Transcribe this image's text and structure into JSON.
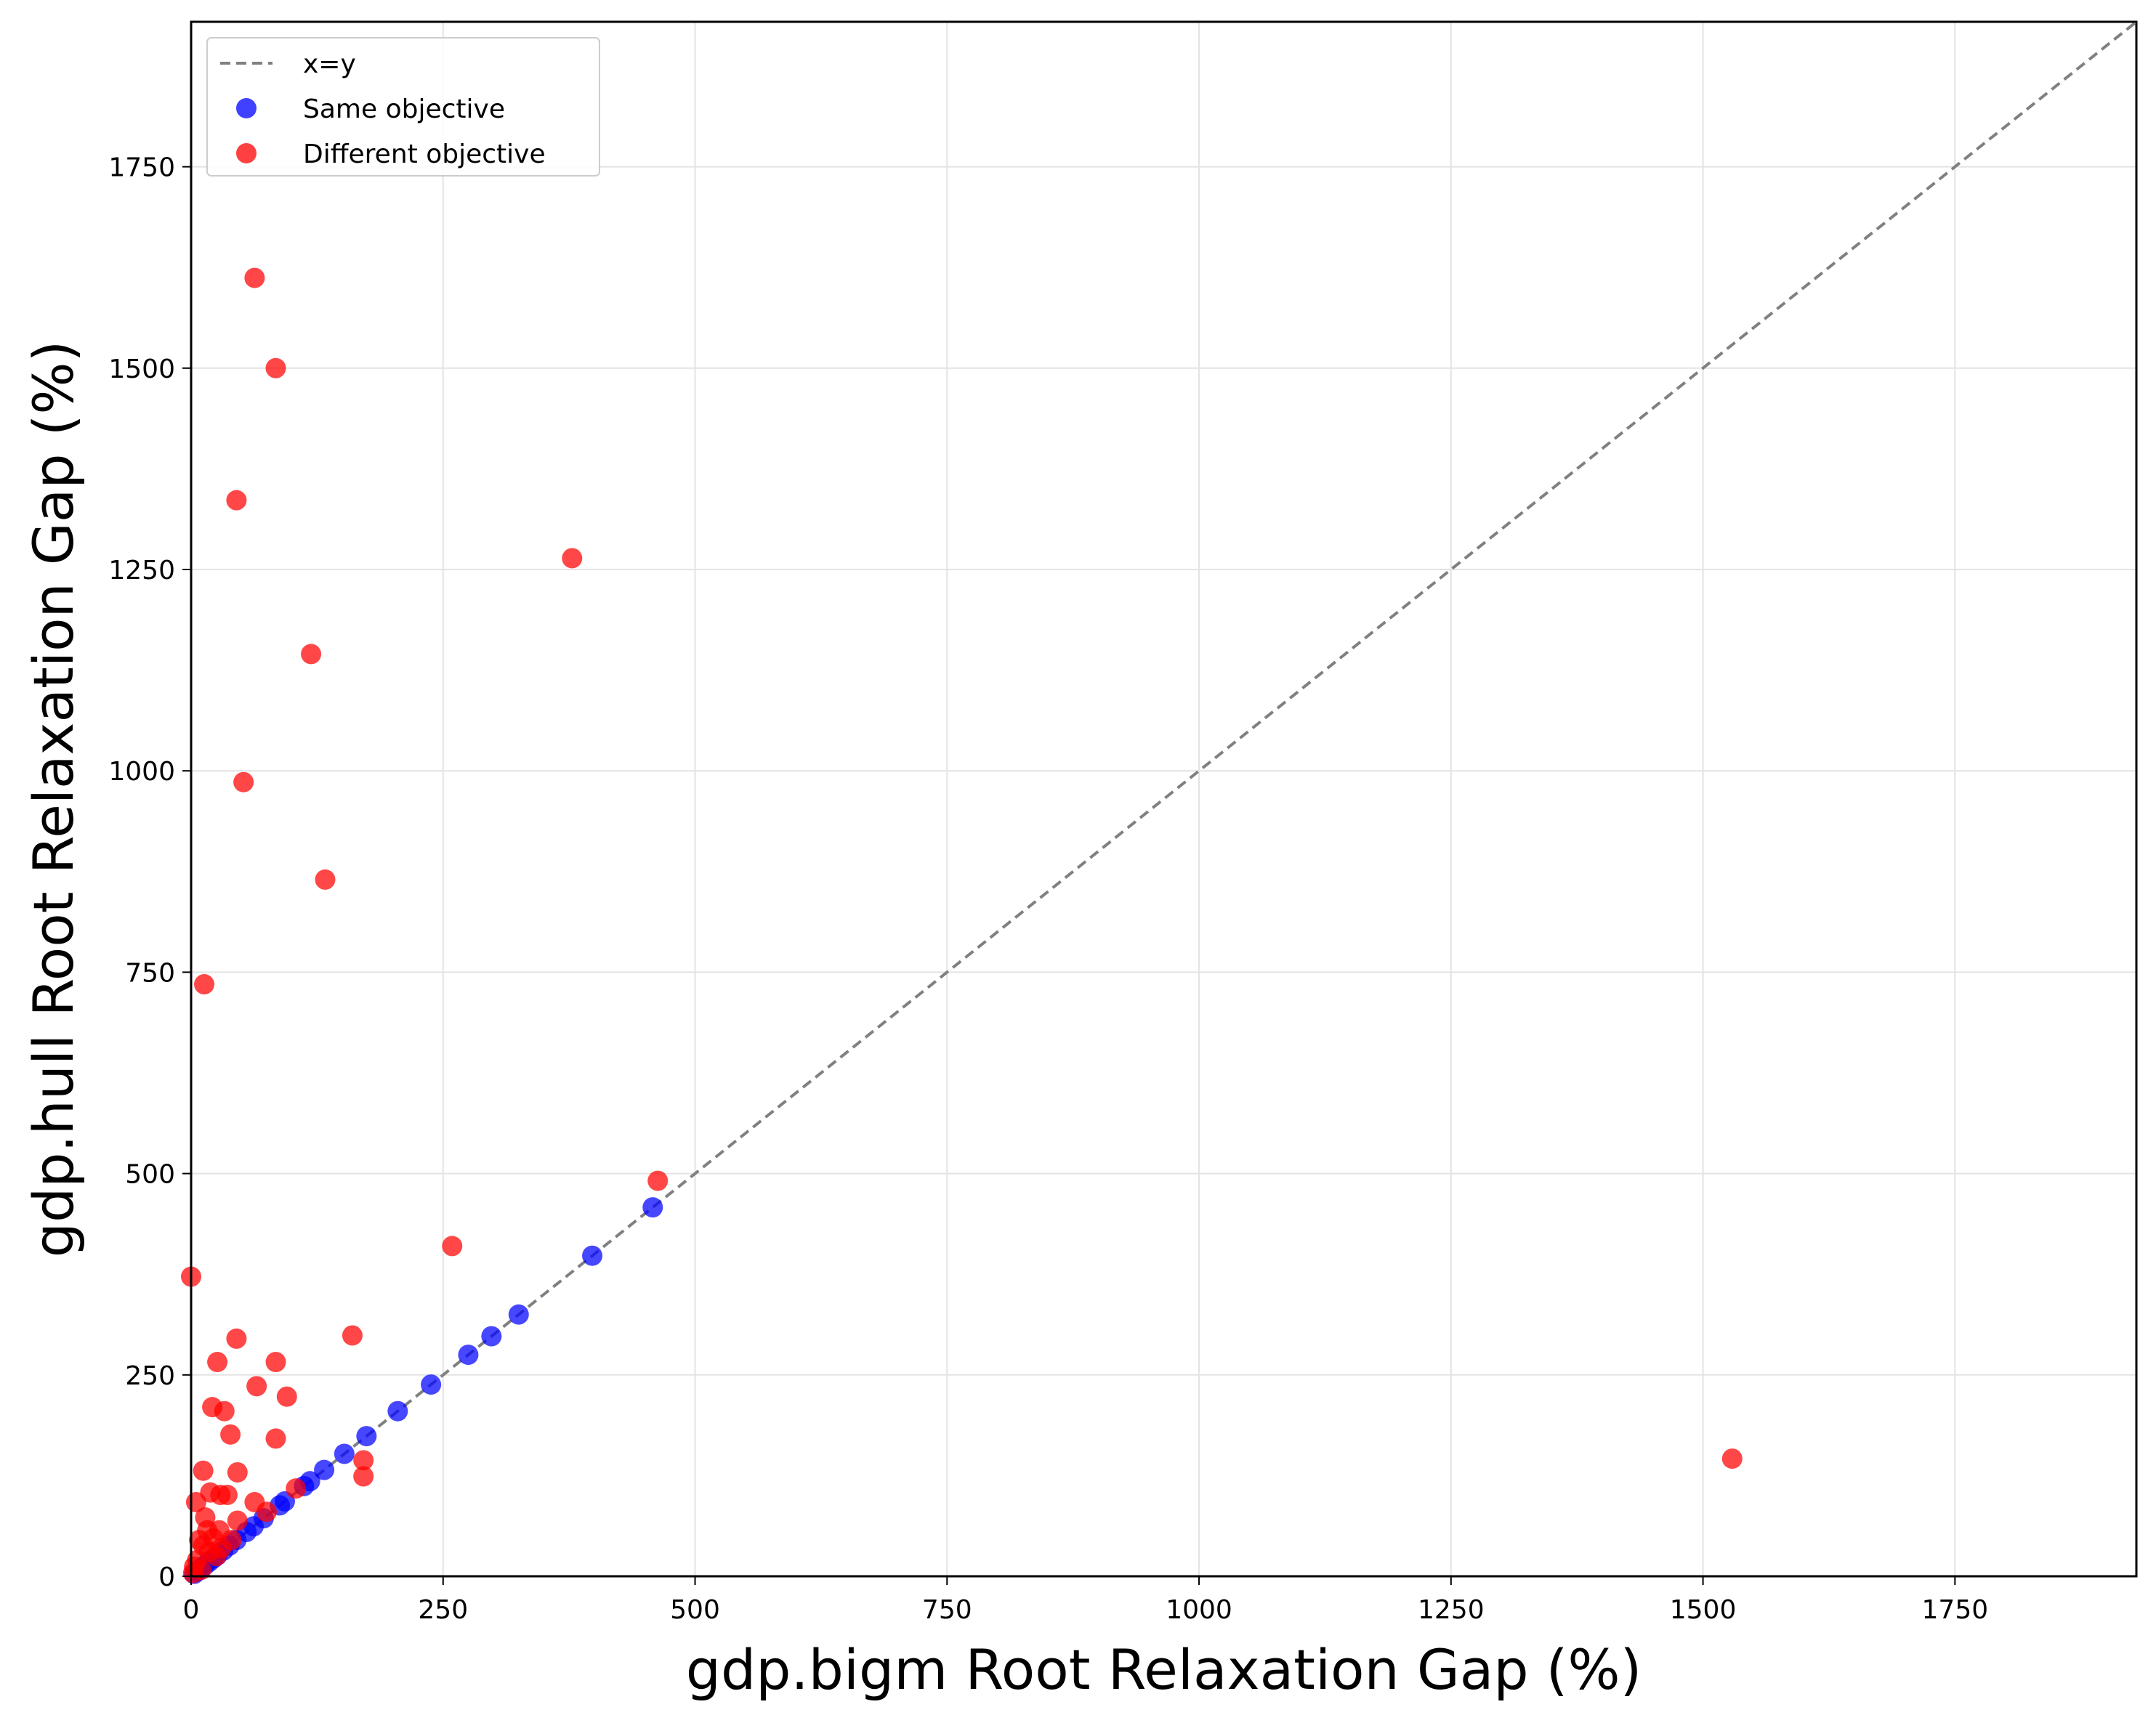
{
  "chart_data": {
    "type": "scatter",
    "xlabel": "gdp.bigm Root Relaxation Gap (%)",
    "ylabel": "gdp.hull Root Relaxation Gap (%)",
    "xlim": [
      0,
      1930
    ],
    "ylim": [
      0,
      1930
    ],
    "xticks": [
      0,
      250,
      500,
      750,
      1000,
      1250,
      1500,
      1750
    ],
    "yticks": [
      0,
      250,
      500,
      750,
      1000,
      1250,
      1500,
      1750
    ],
    "grid": true,
    "legend": {
      "placement": "top-left",
      "entries": [
        {
          "label": "x=y",
          "kind": "line",
          "color": "#808080"
        },
        {
          "label": "Same objective",
          "kind": "marker",
          "color": "#0000ff"
        },
        {
          "label": "Different objective",
          "kind": "marker",
          "color": "#ff0000"
        }
      ]
    },
    "reference_line": {
      "name": "x=y",
      "color": "#808080",
      "style": "dashed"
    },
    "colors": {
      "same": "#0000ff",
      "different": "#ff0000",
      "reference": "#808080"
    },
    "series": [
      {
        "name": "Same objective",
        "color": "#0000ff",
        "points": [
          [
            458,
            458
          ],
          [
            398,
            398
          ],
          [
            325,
            325
          ],
          [
            298,
            298
          ],
          [
            275,
            275
          ],
          [
            238,
            238
          ],
          [
            205,
            205
          ],
          [
            174,
            174
          ],
          [
            152,
            152
          ],
          [
            132,
            132
          ],
          [
            118,
            118
          ],
          [
            112,
            112
          ],
          [
            93,
            93
          ],
          [
            88,
            88
          ],
          [
            72,
            72
          ],
          [
            62,
            62
          ],
          [
            55,
            55
          ],
          [
            45,
            45
          ],
          [
            38,
            38
          ],
          [
            32,
            32
          ],
          [
            26,
            26
          ],
          [
            22,
            22
          ],
          [
            18,
            18
          ],
          [
            14,
            14
          ],
          [
            10,
            10
          ],
          [
            6,
            6
          ],
          [
            3,
            3
          ]
        ]
      },
      {
        "name": "Different objective",
        "color": "#ff0000",
        "points": [
          [
            63,
            1612
          ],
          [
            84,
            1500
          ],
          [
            45,
            1336
          ],
          [
            378,
            1264
          ],
          [
            119,
            1145
          ],
          [
            52,
            986
          ],
          [
            133,
            865
          ],
          [
            13,
            735
          ],
          [
            463,
            491
          ],
          [
            259,
            410
          ],
          [
            1529,
            146
          ],
          [
            0,
            372
          ],
          [
            45,
            295
          ],
          [
            160,
            299
          ],
          [
            26,
            266
          ],
          [
            84,
            266
          ],
          [
            65,
            236
          ],
          [
            95,
            223
          ],
          [
            21,
            210
          ],
          [
            33,
            205
          ],
          [
            39,
            176
          ],
          [
            84,
            171
          ],
          [
            12,
            131
          ],
          [
            46,
            129
          ],
          [
            171,
            144
          ],
          [
            171,
            124
          ],
          [
            19,
            104
          ],
          [
            29,
            101
          ],
          [
            36,
            101
          ],
          [
            63,
            92
          ],
          [
            104,
            109
          ],
          [
            75,
            80
          ],
          [
            46,
            69
          ],
          [
            14,
            73
          ],
          [
            5,
            92
          ],
          [
            16,
            57
          ],
          [
            28,
            57
          ],
          [
            22,
            47
          ],
          [
            8,
            45
          ],
          [
            12,
            38
          ],
          [
            18,
            30
          ],
          [
            25,
            25
          ],
          [
            6,
            20
          ],
          [
            3,
            12
          ],
          [
            10,
            8
          ],
          [
            2,
            4
          ],
          [
            30,
            35
          ],
          [
            40,
            45
          ]
        ]
      }
    ]
  }
}
